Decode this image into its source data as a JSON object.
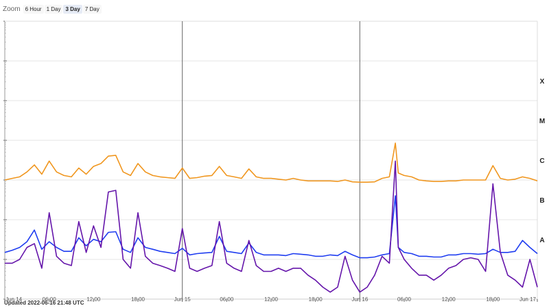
{
  "zoom": {
    "label": "Zoom",
    "buttons": [
      "6 Hour",
      "1 Day",
      "3 Day",
      "7 Day"
    ],
    "active": "3 Day"
  },
  "updated": "Updated 2022-06-16 21:48 UTC",
  "chart_data": {
    "type": "line",
    "x_unit": "hours",
    "xlim": [
      "2022-06-14 00:00",
      "2022-06-17 00:00"
    ],
    "x_ticks": [
      {
        "at": "2022-06-14 00:00",
        "label": "Jun 14"
      },
      {
        "at": "2022-06-14 06:00",
        "label": "06:00"
      },
      {
        "at": "2022-06-14 12:00",
        "label": "12:00"
      },
      {
        "at": "2022-06-14 18:00",
        "label": "18:00"
      },
      {
        "at": "2022-06-15 00:00",
        "label": "Jun 15"
      },
      {
        "at": "2022-06-15 06:00",
        "label": "06:00"
      },
      {
        "at": "2022-06-15 12:00",
        "label": "12:00"
      },
      {
        "at": "2022-06-15 18:00",
        "label": "18:00"
      },
      {
        "at": "2022-06-16 00:00",
        "label": "Jun 16"
      },
      {
        "at": "2022-06-16 06:00",
        "label": "06:00"
      },
      {
        "at": "2022-06-16 12:00",
        "label": "12:00"
      },
      {
        "at": "2022-06-16 18:00",
        "label": "18:00"
      },
      {
        "at": "2022-06-17 00:00",
        "label": "Jun 17"
      }
    ],
    "y_scale": "log",
    "y_unit": "W/m²",
    "ylim": [
      1e-09,
      0.01
    ],
    "flare_classes": [
      {
        "label": "X",
        "value": 0.0001
      },
      {
        "label": "M",
        "value": 1e-05
      },
      {
        "label": "C",
        "value": 1e-06
      },
      {
        "label": "B",
        "value": 1e-07
      },
      {
        "label": "A",
        "value": 1e-08
      }
    ],
    "day_markers": [
      "2022-06-15 00:00",
      "2022-06-16 00:00"
    ],
    "grid": true,
    "series": [
      {
        "color": "#f0961e",
        "points": [
          [
            0,
            1e-06
          ],
          [
            1,
            1.1e-06
          ],
          [
            2,
            1.2e-06
          ],
          [
            3,
            1.6e-06
          ],
          [
            4,
            2.4e-06
          ],
          [
            5,
            1.4e-06
          ],
          [
            6,
            3e-06
          ],
          [
            7,
            1.6e-06
          ],
          [
            8,
            1.3e-06
          ],
          [
            9,
            1.2e-06
          ],
          [
            10,
            2e-06
          ],
          [
            11,
            1.4e-06
          ],
          [
            12,
            2.2e-06
          ],
          [
            13,
            2.6e-06
          ],
          [
            14,
            4e-06
          ],
          [
            15,
            4.2e-06
          ],
          [
            16,
            1.6e-06
          ],
          [
            17,
            1.3e-06
          ],
          [
            18,
            2.6e-06
          ],
          [
            19,
            1.6e-06
          ],
          [
            20,
            1.3e-06
          ],
          [
            21,
            1.2e-06
          ],
          [
            22,
            1.15e-06
          ],
          [
            23,
            1.1e-06
          ],
          [
            24,
            2e-06
          ],
          [
            25,
            1.1e-06
          ],
          [
            26,
            1.15e-06
          ],
          [
            27,
            1.25e-06
          ],
          [
            28,
            1.3e-06
          ],
          [
            29,
            2.2e-06
          ],
          [
            30,
            1.3e-06
          ],
          [
            31,
            1.2e-06
          ],
          [
            32,
            1.1e-06
          ],
          [
            33,
            1.9e-06
          ],
          [
            34,
            1.2e-06
          ],
          [
            35,
            1.1e-06
          ],
          [
            36,
            1.1e-06
          ],
          [
            37,
            1.05e-06
          ],
          [
            38,
            1e-06
          ],
          [
            39,
            1.1e-06
          ],
          [
            40,
            1e-06
          ],
          [
            41,
            9.5e-07
          ],
          [
            42,
            9.5e-07
          ],
          [
            43,
            9.5e-07
          ],
          [
            44,
            9.5e-07
          ],
          [
            45,
            9.2e-07
          ],
          [
            46,
            1e-06
          ],
          [
            47,
            9e-07
          ],
          [
            48,
            8.8e-07
          ],
          [
            49,
            8.8e-07
          ],
          [
            50,
            9e-07
          ],
          [
            51,
            1.1e-06
          ],
          [
            52,
            1.2e-06
          ],
          [
            52.8,
            8.5e-06
          ],
          [
            53.2,
            1.5e-06
          ],
          [
            54,
            1.3e-06
          ],
          [
            55,
            1.2e-06
          ],
          [
            56,
            1e-06
          ],
          [
            57,
            9.5e-07
          ],
          [
            58,
            9.2e-07
          ],
          [
            59,
            9.2e-07
          ],
          [
            60,
            9.5e-07
          ],
          [
            61,
            9.5e-07
          ],
          [
            62,
            1e-06
          ],
          [
            63,
            1e-06
          ],
          [
            64,
            1e-06
          ],
          [
            65,
            1e-06
          ],
          [
            66,
            2.3e-06
          ],
          [
            67,
            1.1e-06
          ],
          [
            68,
            1e-06
          ],
          [
            69,
            1.05e-06
          ],
          [
            70,
            1.2e-06
          ],
          [
            71,
            1.1e-06
          ],
          [
            72,
            9.5e-07
          ]
        ]
      },
      {
        "color": "#1e3cf0",
        "points": [
          [
            0,
            1.5e-08
          ],
          [
            1,
            1.7e-08
          ],
          [
            2,
            2e-08
          ],
          [
            3,
            2.8e-08
          ],
          [
            4,
            5.5e-08
          ],
          [
            5,
            1.8e-08
          ],
          [
            6,
            2.8e-08
          ],
          [
            7,
            2e-08
          ],
          [
            8,
            1.6e-08
          ],
          [
            9,
            1.6e-08
          ],
          [
            10,
            3.5e-08
          ],
          [
            11,
            2.2e-08
          ],
          [
            12,
            3.2e-08
          ],
          [
            13,
            2.8e-08
          ],
          [
            14,
            4.8e-08
          ],
          [
            15,
            5e-08
          ],
          [
            16,
            1.8e-08
          ],
          [
            17,
            1.5e-08
          ],
          [
            18,
            3.5e-08
          ],
          [
            19,
            2e-08
          ],
          [
            20,
            1.8e-08
          ],
          [
            21,
            1.6e-08
          ],
          [
            22,
            1.5e-08
          ],
          [
            23,
            1.4e-08
          ],
          [
            24,
            1.9e-08
          ],
          [
            25,
            1.3e-08
          ],
          [
            26,
            1.4e-08
          ],
          [
            27,
            1.45e-08
          ],
          [
            28,
            1.5e-08
          ],
          [
            29,
            3.8e-08
          ],
          [
            30,
            1.6e-08
          ],
          [
            31,
            1.5e-08
          ],
          [
            32,
            1.4e-08
          ],
          [
            33,
            2.6e-08
          ],
          [
            34,
            1.5e-08
          ],
          [
            35,
            1.3e-08
          ],
          [
            36,
            1.3e-08
          ],
          [
            37,
            1.3e-08
          ],
          [
            38,
            1.25e-08
          ],
          [
            39,
            1.4e-08
          ],
          [
            40,
            1.35e-08
          ],
          [
            41,
            1.3e-08
          ],
          [
            42,
            1.2e-08
          ],
          [
            43,
            1.2e-08
          ],
          [
            44,
            1.3e-08
          ],
          [
            45,
            1.25e-08
          ],
          [
            46,
            1.6e-08
          ],
          [
            47,
            1.3e-08
          ],
          [
            48,
            1.1e-08
          ],
          [
            49,
            1.1e-08
          ],
          [
            50,
            1.15e-08
          ],
          [
            51,
            1.3e-08
          ],
          [
            52,
            1.4e-08
          ],
          [
            52.8,
            4e-07
          ],
          [
            53.2,
            2e-08
          ],
          [
            54,
            1.5e-08
          ],
          [
            55,
            1.4e-08
          ],
          [
            56,
            1.2e-08
          ],
          [
            57,
            1.2e-08
          ],
          [
            58,
            1.15e-08
          ],
          [
            59,
            1.15e-08
          ],
          [
            60,
            1.3e-08
          ],
          [
            61,
            1.3e-08
          ],
          [
            62,
            1.4e-08
          ],
          [
            63,
            1.4e-08
          ],
          [
            64,
            1.35e-08
          ],
          [
            65,
            1.4e-08
          ],
          [
            66,
            1.8e-08
          ],
          [
            67,
            1.5e-08
          ],
          [
            68,
            1.5e-08
          ],
          [
            69,
            1.6e-08
          ],
          [
            70,
            3e-08
          ],
          [
            71,
            2e-08
          ],
          [
            72,
            1.4e-08
          ]
        ]
      },
      {
        "color": "#6414aa",
        "points": [
          [
            0,
            8e-09
          ],
          [
            1,
            8e-09
          ],
          [
            2,
            1e-08
          ],
          [
            3,
            2e-08
          ],
          [
            4,
            2.5e-08
          ],
          [
            5,
            6e-09
          ],
          [
            6,
            1.5e-07
          ],
          [
            7,
            1.2e-08
          ],
          [
            8,
            8e-09
          ],
          [
            9,
            7e-09
          ],
          [
            10,
            9e-08
          ],
          [
            11,
            1.5e-08
          ],
          [
            12,
            7e-08
          ],
          [
            13,
            2e-08
          ],
          [
            14,
            5e-07
          ],
          [
            15,
            5.5e-07
          ],
          [
            16,
            1e-08
          ],
          [
            17,
            6e-09
          ],
          [
            18,
            1.5e-07
          ],
          [
            19,
            1.2e-08
          ],
          [
            20,
            8e-09
          ],
          [
            21,
            7e-09
          ],
          [
            22,
            6e-09
          ],
          [
            23,
            5e-09
          ],
          [
            24,
            6e-08
          ],
          [
            25,
            6e-09
          ],
          [
            26,
            5e-09
          ],
          [
            27,
            6e-09
          ],
          [
            28,
            7e-09
          ],
          [
            29,
            9e-08
          ],
          [
            30,
            8e-09
          ],
          [
            31,
            6e-09
          ],
          [
            32,
            5e-09
          ],
          [
            33,
            3e-08
          ],
          [
            34,
            7e-09
          ],
          [
            35,
            5e-09
          ],
          [
            36,
            5e-09
          ],
          [
            37,
            6e-09
          ],
          [
            38,
            5e-09
          ],
          [
            39,
            6e-09
          ],
          [
            40,
            6e-09
          ],
          [
            41,
            4e-09
          ],
          [
            42,
            3e-09
          ],
          [
            43,
            2e-09
          ],
          [
            44,
            1.5e-09
          ],
          [
            45,
            2e-09
          ],
          [
            46,
            1.2e-08
          ],
          [
            47,
            3e-09
          ],
          [
            48,
            1.5e-09
          ],
          [
            49,
            2e-09
          ],
          [
            50,
            4e-09
          ],
          [
            51,
            1.2e-08
          ],
          [
            52,
            8e-09
          ],
          [
            52.8,
            3e-06
          ],
          [
            53.2,
            2e-08
          ],
          [
            54,
            1e-08
          ],
          [
            55,
            6e-09
          ],
          [
            56,
            4e-09
          ],
          [
            57,
            4e-09
          ],
          [
            58,
            3e-09
          ],
          [
            59,
            4e-09
          ],
          [
            60,
            6e-09
          ],
          [
            61,
            7e-09
          ],
          [
            62,
            1e-08
          ],
          [
            63,
            1.1e-08
          ],
          [
            64,
            1e-08
          ],
          [
            65,
            5e-09
          ],
          [
            66,
            8e-07
          ],
          [
            67,
            1.5e-08
          ],
          [
            68,
            4e-09
          ],
          [
            69,
            3e-09
          ],
          [
            70,
            2e-09
          ],
          [
            71,
            1e-08
          ],
          [
            72,
            2e-09
          ]
        ]
      }
    ]
  }
}
